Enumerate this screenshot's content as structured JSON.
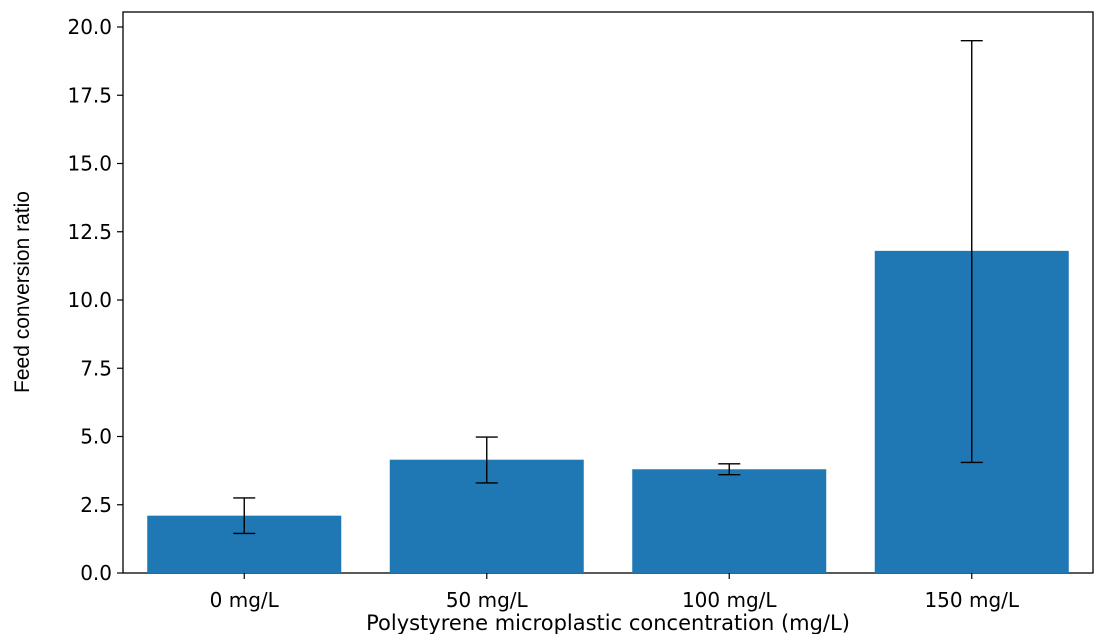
{
  "chart_data": {
    "type": "bar",
    "categories": [
      "0 mg/L",
      "50 mg/L",
      "100 mg/L",
      "150 mg/L"
    ],
    "values": [
      2.1,
      4.15,
      3.8,
      11.8
    ],
    "error_low": [
      1.45,
      3.3,
      3.6,
      4.05
    ],
    "error_high": [
      2.75,
      4.98,
      4.0,
      19.5
    ],
    "xlabel": "Polystyrene microplastic concentration (mg/L)",
    "ylabel": "Feed conversion ratio",
    "ylim": [
      0,
      20.5
    ],
    "yticks": [
      "0.0",
      "2.5",
      "5.0",
      "7.5",
      "10.0",
      "12.5",
      "15.0",
      "17.5",
      "20.0"
    ],
    "bar_color": "#1f77b4",
    "grid": false
  }
}
